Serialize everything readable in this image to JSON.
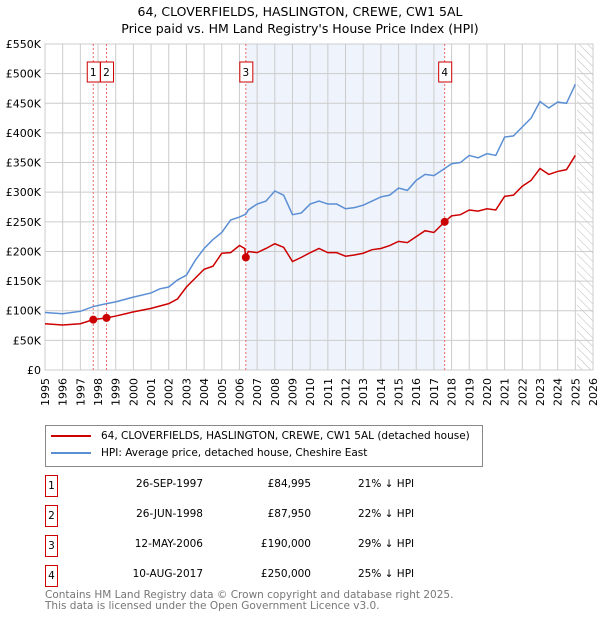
{
  "chart_data": {
    "type": "line",
    "title": "64, CLOVERFIELDS, HASLINGTON, CREWE, CW1 5AL",
    "subtitle": "Price paid vs. HM Land Registry's House Price Index (HPI)",
    "xlim": [
      1995,
      2026
    ],
    "ylim": [
      0,
      550000
    ],
    "x_ticks": [
      "1995",
      "1996",
      "1997",
      "1998",
      "1999",
      "2000",
      "2001",
      "2002",
      "2003",
      "2004",
      "2005",
      "2006",
      "2007",
      "2008",
      "2009",
      "2010",
      "2011",
      "2012",
      "2013",
      "2014",
      "2015",
      "2016",
      "2017",
      "2018",
      "2019",
      "2020",
      "2021",
      "2022",
      "2023",
      "2024",
      "2025",
      "2026"
    ],
    "y_ticks": [
      {
        "v": 0,
        "label": "£0"
      },
      {
        "v": 50000,
        "label": "£50K"
      },
      {
        "v": 100000,
        "label": "£100K"
      },
      {
        "v": 150000,
        "label": "£150K"
      },
      {
        "v": 200000,
        "label": "£200K"
      },
      {
        "v": 250000,
        "label": "£250K"
      },
      {
        "v": 300000,
        "label": "£300K"
      },
      {
        "v": 350000,
        "label": "£350K"
      },
      {
        "v": 400000,
        "label": "£400K"
      },
      {
        "v": 450000,
        "label": "£450K"
      },
      {
        "v": 500000,
        "label": "£500K"
      },
      {
        "v": 550000,
        "label": "£550K"
      }
    ],
    "grid": true,
    "shaded_range": [
      2006.36,
      2017.61
    ],
    "hatched_from": 2025.1,
    "series": [
      {
        "name": "64, CLOVERFIELDS, HASLINGTON, CREWE, CW1 5AL (detached house)",
        "color": "#cc0000",
        "x": [
          1995,
          1996,
          1997,
          1997.73,
          1998.48,
          1999,
          2000,
          2001,
          2001.5,
          2002,
          2002.5,
          2003,
          2003.5,
          2004,
          2004.5,
          2005,
          2005.5,
          2006,
          2006.3,
          2006.36,
          2006.5,
          2007,
          2007.5,
          2008,
          2008.5,
          2009,
          2009.5,
          2010,
          2010.5,
          2011,
          2011.5,
          2012,
          2012.5,
          2013,
          2013.5,
          2014,
          2014.5,
          2015,
          2015.5,
          2016,
          2016.5,
          2017,
          2017.61,
          2018,
          2018.5,
          2019,
          2019.5,
          2020,
          2020.5,
          2021,
          2021.5,
          2022,
          2022.5,
          2023,
          2023.5,
          2024,
          2024.5,
          2025
        ],
        "y": [
          78000,
          76000,
          78000,
          84995,
          87950,
          91000,
          98000,
          104000,
          108000,
          112000,
          120000,
          140000,
          155000,
          170000,
          175000,
          197000,
          198000,
          210000,
          205000,
          190000,
          200000,
          198000,
          205000,
          213000,
          207000,
          183000,
          190000,
          198000,
          205000,
          198000,
          198000,
          192000,
          194000,
          197000,
          203000,
          205000,
          210000,
          217000,
          215000,
          225000,
          235000,
          232000,
          250000,
          260000,
          262000,
          270000,
          268000,
          272000,
          270000,
          293000,
          295000,
          310000,
          320000,
          340000,
          330000,
          335000,
          338000,
          362000
        ]
      },
      {
        "name": "HPI: Average price, detached house, Cheshire East",
        "color": "#5b8fd4",
        "x": [
          1995,
          1996,
          1997,
          1997.73,
          1998.48,
          1999,
          2000,
          2001,
          2001.5,
          2002,
          2002.5,
          2003,
          2003.5,
          2004,
          2004.5,
          2005,
          2005.5,
          2006,
          2006.36,
          2006.5,
          2007,
          2007.5,
          2008,
          2008.5,
          2009,
          2009.5,
          2010,
          2010.5,
          2011,
          2011.5,
          2012,
          2012.5,
          2013,
          2013.5,
          2014,
          2014.5,
          2015,
          2015.5,
          2016,
          2016.5,
          2017,
          2017.61,
          2018,
          2018.5,
          2019,
          2019.5,
          2020,
          2020.5,
          2021,
          2021.5,
          2022,
          2022.5,
          2023,
          2023.5,
          2024,
          2024.5,
          2025
        ],
        "y": [
          97000,
          95000,
          99000,
          107000,
          112000,
          115000,
          123000,
          130000,
          137000,
          140000,
          152000,
          160000,
          185000,
          205000,
          220000,
          232000,
          253000,
          258000,
          263000,
          270000,
          280000,
          285000,
          302000,
          295000,
          262000,
          265000,
          280000,
          285000,
          280000,
          280000,
          272000,
          274000,
          278000,
          285000,
          292000,
          295000,
          307000,
          303000,
          320000,
          330000,
          328000,
          340000,
          348000,
          350000,
          362000,
          358000,
          365000,
          362000,
          393000,
          395000,
          410000,
          425000,
          453000,
          442000,
          452000,
          450000,
          482000
        ]
      }
    ],
    "sales": [
      {
        "num": "1",
        "date": "26-SEP-1997",
        "price": "£84,995",
        "hpi": "21% ↓ HPI",
        "x": 1997.73,
        "y": 84995
      },
      {
        "num": "2",
        "date": "26-JUN-1998",
        "price": "£87,950",
        "hpi": "22% ↓ HPI",
        "x": 1998.48,
        "y": 87950
      },
      {
        "num": "3",
        "date": "12-MAY-2006",
        "price": "£190,000",
        "hpi": "29% ↓ HPI",
        "x": 2006.36,
        "y": 190000
      },
      {
        "num": "4",
        "date": "10-AUG-2017",
        "price": "£250,000",
        "hpi": "25% ↓ HPI",
        "x": 2017.61,
        "y": 250000
      }
    ]
  },
  "legend": {
    "red": "64, CLOVERFIELDS, HASLINGTON, CREWE, CW1 5AL (detached house)",
    "blue": "HPI: Average price, detached house, Cheshire East"
  },
  "footer": {
    "line1": "Contains HM Land Registry data © Crown copyright and database right 2025.",
    "line2": "This data is licensed under the Open Government Licence v3.0."
  }
}
